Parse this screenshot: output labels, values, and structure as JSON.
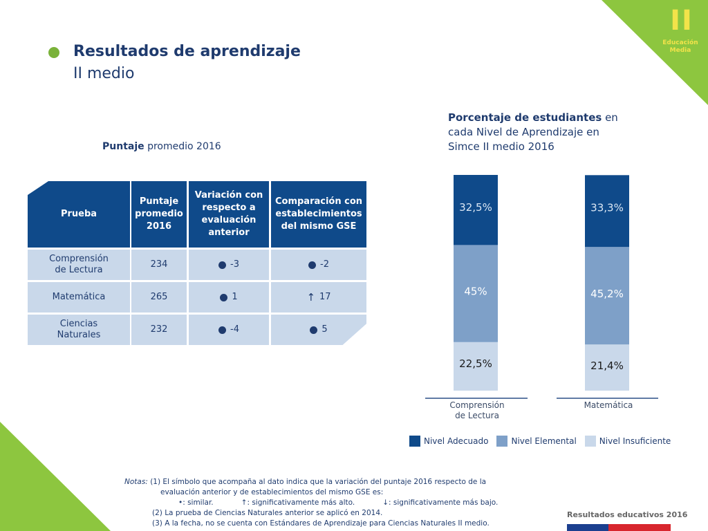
{
  "header": {
    "title": "Resultados de aprendizaje",
    "subtitle": "II medio"
  },
  "badge": {
    "roman": "II",
    "line1": "Educación",
    "line2": "Media",
    "color": "#8dc63f",
    "text_color": "#f2e34a"
  },
  "table_caption": {
    "bold": "Puntaje",
    "rest": " promedio 2016"
  },
  "table": {
    "headers": [
      "Prueba",
      "Puntaje promedio 2016",
      "Variación con respecto a evaluación anterior",
      "Comparación con establecimientos del mismo GSE"
    ],
    "rows": [
      {
        "prueba": "Comprensión de Lectura",
        "puntaje": "234",
        "variacion": "-3",
        "variacion_symbol": "dot",
        "comparacion": "-2",
        "comparacion_symbol": "dot"
      },
      {
        "prueba": "Matemática",
        "puntaje": "265",
        "variacion": "1",
        "variacion_symbol": "dot",
        "comparacion": "17",
        "comparacion_symbol": "up"
      },
      {
        "prueba": "Ciencias Naturales",
        "puntaje": "232",
        "variacion": "-4",
        "variacion_symbol": "dot",
        "comparacion": "5",
        "comparacion_symbol": "dot"
      }
    ]
  },
  "chart_caption": {
    "bold": "Porcentaje de estudiantes",
    "rest": " en cada Nivel de Aprendizaje en Simce II medio 2016"
  },
  "chart_data": {
    "type": "bar",
    "stacked": true,
    "categories": [
      "Comprensión de Lectura",
      "Matemática"
    ],
    "series": [
      {
        "name": "Nivel Insuficiente",
        "values": [
          22.5,
          21.4
        ],
        "labels": [
          "22,5%",
          "21,4%"
        ],
        "color": "#c9d8ea",
        "label_color": "#1a1a1a"
      },
      {
        "name": "Nivel Elemental",
        "values": [
          45,
          45.2
        ],
        "labels": [
          "45%",
          "45,2%"
        ],
        "color": "#7ea0c8",
        "label_color": "#ffffff"
      },
      {
        "name": "Nivel Adecuado",
        "values": [
          32.5,
          33.3
        ],
        "labels": [
          "32,5%",
          "33,3%"
        ],
        "color": "#0f4a8a",
        "label_color": "#dce8f5"
      }
    ],
    "ylim": [
      0,
      100
    ],
    "legend_position": "bottom"
  },
  "notes": {
    "label": "Notas:",
    "line1": "(1) El símbolo que acompaña al dato indica que la variación del puntaje 2016 respecto de la",
    "line2": "evaluación anterior y de establecimientos del mismo GSE es:",
    "sym_similar": "•: similar.",
    "sym_up": "↑: significativamente más alto.",
    "sym_down": "↓: significativamente más bajo.",
    "line4": "(2) La prueba de Ciencias Naturales anterior se aplicó en 2014.",
    "line5": "(3) A la fecha, no se cuenta con Estándares de Aprendizaje para Ciencias Naturales II medio."
  },
  "footer": {
    "text": "Resultados educativos 2016"
  }
}
